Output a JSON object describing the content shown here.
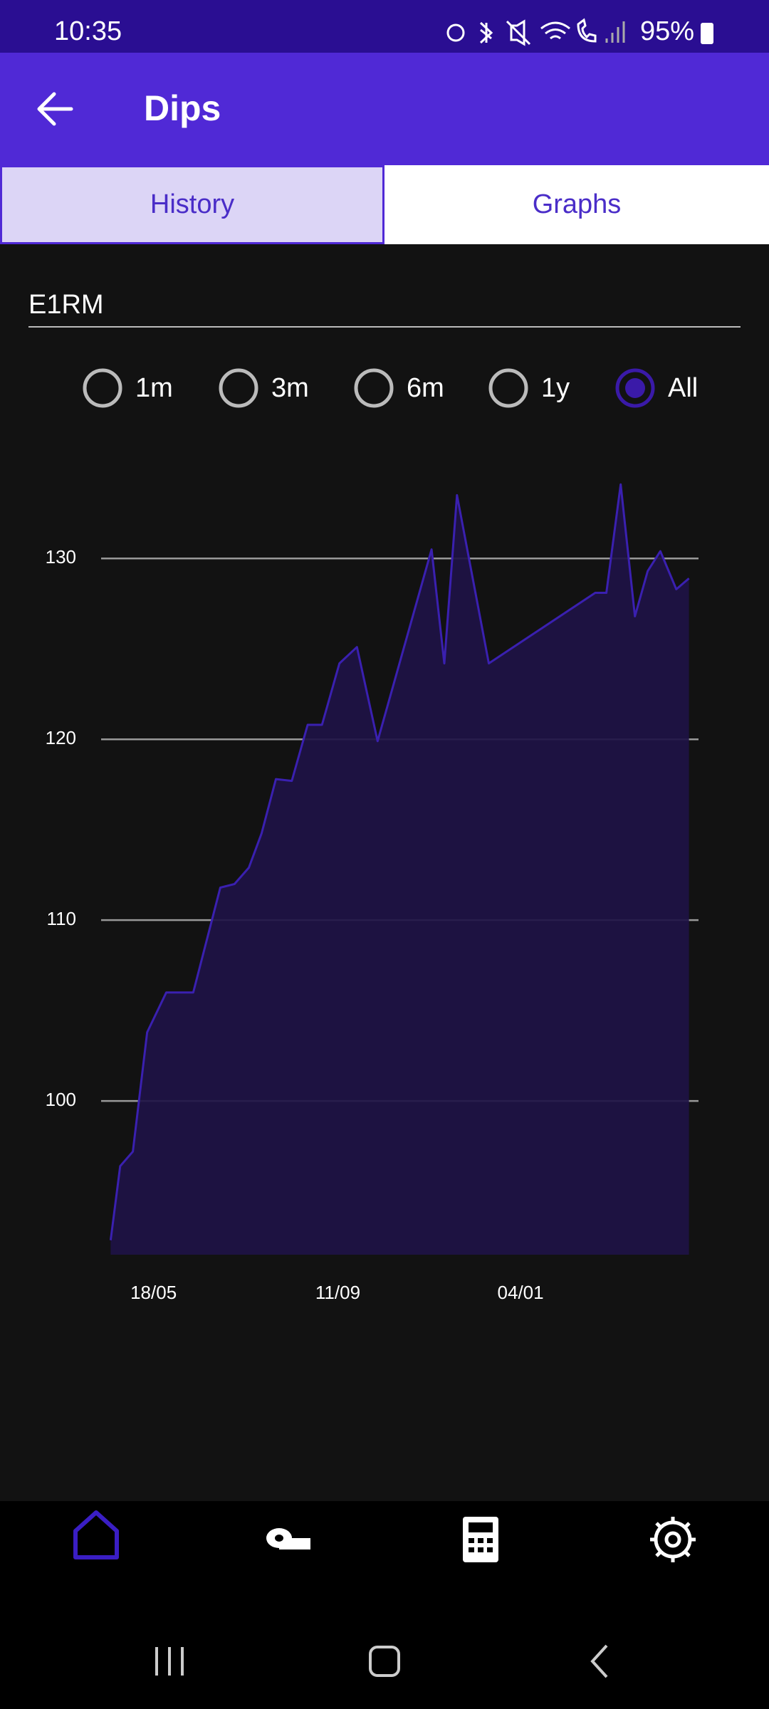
{
  "status_bar": {
    "time": "10:35",
    "battery": "95%"
  },
  "app_bar": {
    "title": "Dips"
  },
  "tabs": {
    "items": [
      "History",
      "Graphs"
    ],
    "selected": 0
  },
  "field": {
    "label": "E1RM"
  },
  "ranges": {
    "options": [
      "1m",
      "3m",
      "6m",
      "1y",
      "All"
    ],
    "selected": 4
  },
  "chart_data": {
    "type": "area",
    "x": [
      -27,
      -21,
      -13,
      -4,
      8,
      25,
      42,
      51,
      60,
      68,
      77,
      87,
      97,
      106,
      117,
      128,
      141,
      175,
      183,
      191,
      211,
      278,
      285,
      294,
      303,
      311,
      319,
      329,
      337
    ],
    "values": [
      92.3,
      96.4,
      97.2,
      103.8,
      106.0,
      106.0,
      111.8,
      112.0,
      112.9,
      114.8,
      117.8,
      117.7,
      120.8,
      120.8,
      124.2,
      125.1,
      119.9,
      130.5,
      124.2,
      133.5,
      124.2,
      128.1,
      128.1,
      134.1,
      126.8,
      129.3,
      130.4,
      128.3,
      128.9
    ],
    "color": "#3a20b0",
    "fill": "#1e1245",
    "xlim": [
      -33,
      343
    ],
    "ylim": [
      91.5,
      134.5
    ],
    "xticks": [
      {
        "value": 0,
        "label": "18/05"
      },
      {
        "value": 116,
        "label": "11/09"
      },
      {
        "value": 231,
        "label": "04/01"
      }
    ],
    "yticks": [
      100,
      110,
      120,
      130
    ],
    "grid": true
  }
}
